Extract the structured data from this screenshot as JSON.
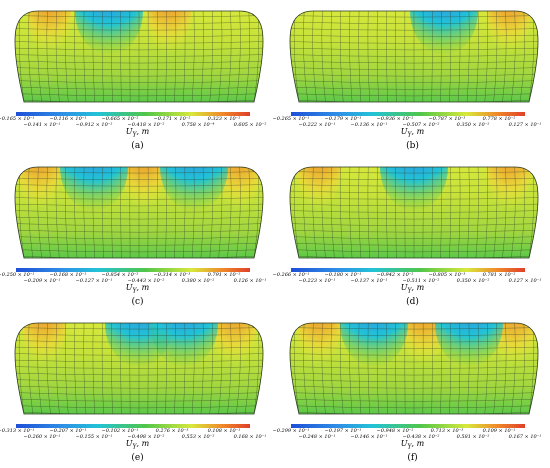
{
  "figure": {
    "panels": [
      {
        "caption": "(a)",
        "axis_label": "U",
        "axis_sub": "Y",
        "axis_unit": ", m",
        "top_labels": [
          "−0.165 × 10⁻¹",
          "−0.116 × 10⁻¹",
          "−0.665 × 10⁻²",
          "−0.171 × 10⁻²",
          "0.323 × 10⁻²"
        ],
        "bottom_labels": [
          "−0.141 × 10⁻¹",
          "−0.912 × 10⁻²",
          "−0.418 × 10⁻²",
          "0.758 × 10⁻⁴",
          "0.605 × 10⁻²"
        ],
        "hot": [
          0.14,
          0.62
        ],
        "cold": [
          0.38
        ]
      },
      {
        "caption": "(b)",
        "axis_label": "U",
        "axis_sub": "Y",
        "axis_unit": ", m",
        "top_labels": [
          "−0.265 × 10⁻¹",
          "−0.179 × 10⁻¹",
          "−0.936 × 10⁻²",
          "−0.787 × 10⁻³",
          "0.778 × 10⁻²"
        ],
        "bottom_labels": [
          "−0.222 × 10⁻¹",
          "−0.136 × 10⁻¹",
          "−0.507 × 10⁻²",
          "0.350 × 10⁻²",
          "0.127 × 10⁻¹"
        ],
        "hot": [
          0.88
        ],
        "cold": [
          0.62
        ]
      },
      {
        "caption": "(c)",
        "axis_label": "U",
        "axis_sub": "Y",
        "axis_unit": ", m",
        "top_labels": [
          "−0.250 × 10⁻¹",
          "−0.168 × 10⁻¹",
          "−0.854 × 10⁻²",
          "−0.314 × 10⁻³",
          "0.791 × 10⁻²"
        ],
        "bottom_labels": [
          "−0.209 × 10⁻¹",
          "−0.127 × 10⁻¹",
          "−0.443 × 10⁻²",
          "0.380 × 10⁻²",
          "0.126 × 10⁻¹"
        ],
        "hot": [
          0.1,
          0.52,
          0.9
        ],
        "cold": [
          0.32,
          0.72
        ]
      },
      {
        "caption": "(d)",
        "axis_label": "U",
        "axis_sub": "Y",
        "axis_unit": ", m",
        "top_labels": [
          "−0.266 × 10⁻¹",
          "−0.180 × 10⁻¹",
          "−0.942 × 10⁻²",
          "−0.805 × 10⁻³",
          "0.781 × 10⁻²"
        ],
        "bottom_labels": [
          "−0.223 × 10⁻¹",
          "−0.137 × 10⁻¹",
          "−0.511 × 10⁻²",
          "0.350 × 10⁻²",
          "0.127 × 10⁻¹"
        ],
        "hot": [
          0.12,
          0.88
        ],
        "cold": [
          0.5
        ]
      },
      {
        "caption": "(e)",
        "axis_label": "U",
        "axis_sub": "Y",
        "axis_unit": ", m",
        "top_labels": [
          "−0.313 × 10⁻¹",
          "−0.207 × 10⁻¹",
          "−0.102 × 10⁻¹",
          "0.276 × 10⁻³",
          "0.108 × 10⁻¹"
        ],
        "bottom_labels": [
          "−0.260 × 10⁻¹",
          "−0.155 × 10⁻¹",
          "−0.498 × 10⁻²",
          "0.553 × 10⁻²",
          "0.168 × 10⁻¹"
        ],
        "hot": [
          0.12,
          0.88
        ],
        "cold": [
          0.5,
          0.68
        ]
      },
      {
        "caption": "(f)",
        "axis_label": "U",
        "axis_sub": "Y",
        "axis_unit": ", m",
        "top_labels": [
          "−0.299 × 10⁻¹",
          "−0.197 × 10⁻¹",
          "−0.948 × 10⁻²",
          "0.713 × 10⁻³",
          "0.109 × 10⁻¹"
        ],
        "bottom_labels": [
          "−0.248 × 10⁻¹",
          "−0.146 × 10⁻¹",
          "−0.438 × 10⁻²",
          "0.581 × 10⁻²",
          "0.167 × 10⁻¹"
        ],
        "hot": [
          0.12,
          0.54,
          0.9
        ],
        "cold": [
          0.34,
          0.72
        ]
      }
    ],
    "colors": {
      "blue": "#1f4fd8",
      "cyan": "#22c3d6",
      "green": "#4fc64a",
      "yellow": "#d8e83c",
      "orange": "#f08a2a",
      "red": "#e0402a",
      "mesh": "#2b3a1f"
    }
  }
}
